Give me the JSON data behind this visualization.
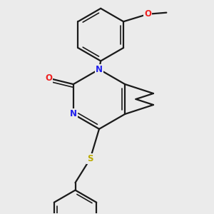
{
  "background_color": "#ebebeb",
  "bond_color": "#1a1a1a",
  "atom_colors": {
    "N": "#2020ee",
    "O": "#ee2020",
    "S": "#bbaa00",
    "C": "#1a1a1a"
  },
  "figsize": [
    3.0,
    3.0
  ],
  "dpi": 100,
  "lw": 1.6,
  "lw_inner": 1.2
}
